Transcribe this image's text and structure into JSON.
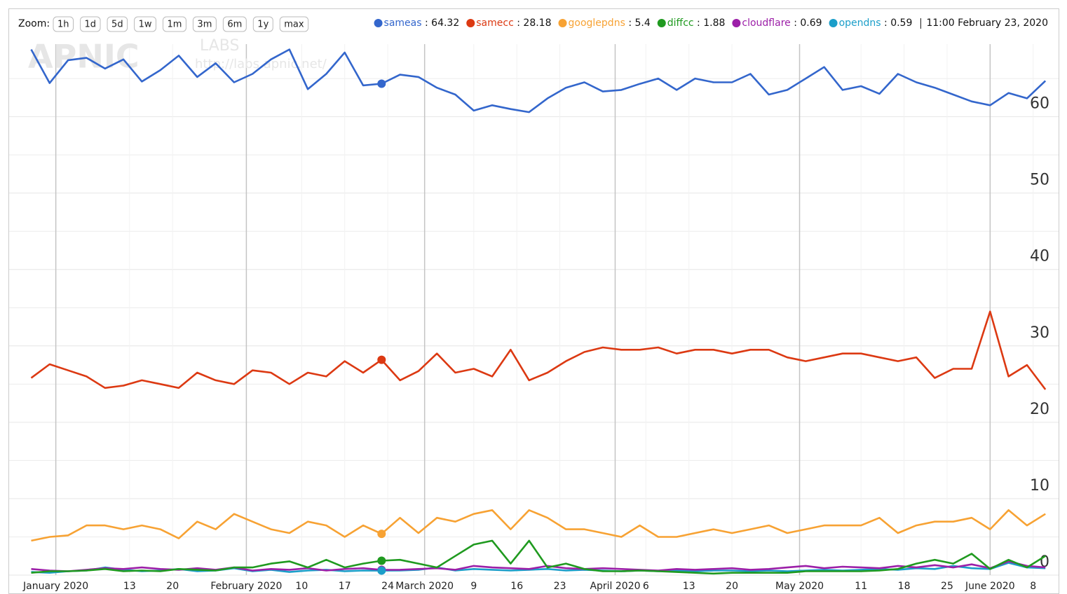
{
  "chart_data": {
    "type": "line",
    "zoom": {
      "label": "Zoom:",
      "buttons": [
        "1h",
        "1d",
        "5d",
        "1w",
        "1m",
        "3m",
        "6m",
        "1y",
        "max"
      ]
    },
    "watermark": [
      "APNIC",
      "LABS",
      "http://labs.apnic.net/"
    ],
    "legend_separator": " : ",
    "highlight": {
      "x": "2020-02-23",
      "label": "11:00 February 23, 2020"
    },
    "x": [
      "2019-12-28",
      "2019-12-31",
      "2020-01-03",
      "2020-01-06",
      "2020-01-09",
      "2020-01-12",
      "2020-01-15",
      "2020-01-18",
      "2020-01-21",
      "2020-01-24",
      "2020-01-27",
      "2020-01-30",
      "2020-02-02",
      "2020-02-05",
      "2020-02-08",
      "2020-02-11",
      "2020-02-14",
      "2020-02-17",
      "2020-02-20",
      "2020-02-23",
      "2020-02-26",
      "2020-02-29",
      "2020-03-03",
      "2020-03-06",
      "2020-03-09",
      "2020-03-12",
      "2020-03-15",
      "2020-03-18",
      "2020-03-21",
      "2020-03-24",
      "2020-03-27",
      "2020-03-30",
      "2020-04-02",
      "2020-04-05",
      "2020-04-08",
      "2020-04-11",
      "2020-04-14",
      "2020-04-17",
      "2020-04-20",
      "2020-04-23",
      "2020-04-26",
      "2020-04-29",
      "2020-05-02",
      "2020-05-05",
      "2020-05-08",
      "2020-05-11",
      "2020-05-14",
      "2020-05-17",
      "2020-05-20",
      "2020-05-23",
      "2020-05-26",
      "2020-05-29",
      "2020-06-01",
      "2020-06-04",
      "2020-06-07",
      "2020-06-10"
    ],
    "series": [
      {
        "name": "sameas",
        "color": "#3366cc",
        "values": [
          68.8,
          64.4,
          67.4,
          67.7,
          66.3,
          67.5,
          64.6,
          66.1,
          68.0,
          65.2,
          67.0,
          64.5,
          65.6,
          67.5,
          68.8,
          63.6,
          65.6,
          68.4,
          64.1,
          64.32,
          65.5,
          65.2,
          63.8,
          62.9,
          60.8,
          61.5,
          61.0,
          60.6,
          62.4,
          63.8,
          64.5,
          63.3,
          63.5,
          64.3,
          65.0,
          63.5,
          65.0,
          64.5,
          64.5,
          65.6,
          62.9,
          63.5,
          65.0,
          66.5,
          63.5,
          64.0,
          63.0,
          65.6,
          64.5,
          63.8,
          62.9,
          62.0,
          61.5,
          63.1,
          62.4,
          64.7
        ]
      },
      {
        "name": "samecc",
        "color": "#dc3912",
        "values": [
          25.8,
          27.6,
          26.8,
          26.0,
          24.5,
          24.8,
          25.5,
          25.0,
          24.5,
          26.5,
          25.5,
          25.0,
          26.8,
          26.5,
          25.0,
          26.5,
          26.0,
          28.0,
          26.5,
          28.18,
          25.5,
          26.7,
          29.0,
          26.5,
          27.0,
          26.0,
          29.5,
          25.5,
          26.5,
          28.0,
          29.2,
          29.8,
          29.5,
          29.5,
          29.8,
          29.0,
          29.5,
          29.5,
          29.0,
          29.5,
          29.5,
          28.5,
          28.0,
          28.5,
          29.0,
          29.0,
          28.5,
          28.0,
          28.5,
          25.8,
          27.0,
          27.0,
          34.5,
          26.0,
          27.5,
          24.3
        ]
      },
      {
        "name": "googlepdns",
        "color": "#f7a233",
        "values": [
          4.5,
          5.0,
          5.2,
          6.5,
          6.5,
          6.0,
          6.5,
          6.0,
          4.8,
          7.0,
          6.0,
          8.0,
          7.0,
          6.0,
          5.5,
          7.0,
          6.5,
          5.0,
          6.5,
          5.4,
          7.5,
          5.5,
          7.5,
          7.0,
          8.0,
          8.5,
          6.0,
          8.5,
          7.5,
          6.0,
          6.0,
          5.5,
          5.0,
          6.5,
          5.0,
          5.0,
          5.5,
          6.0,
          5.5,
          6.0,
          6.5,
          5.5,
          6.0,
          6.5,
          6.5,
          6.5,
          7.5,
          5.5,
          6.5,
          7.0,
          7.0,
          7.5,
          6.0,
          8.5,
          6.5,
          8.0
        ]
      },
      {
        "name": "diffcc",
        "color": "#1f9a1f",
        "values": [
          0.3,
          0.5,
          0.5,
          0.6,
          0.8,
          0.5,
          0.6,
          0.5,
          0.8,
          0.7,
          0.6,
          1.0,
          1.0,
          1.5,
          1.8,
          1.0,
          2.0,
          1.0,
          1.5,
          1.88,
          2.0,
          1.5,
          1.0,
          2.5,
          4.0,
          4.5,
          1.5,
          4.5,
          1.0,
          1.5,
          0.8,
          0.5,
          0.5,
          0.6,
          0.5,
          0.4,
          0.3,
          0.2,
          0.3,
          0.3,
          0.3,
          0.3,
          0.5,
          0.5,
          0.5,
          0.5,
          0.6,
          0.8,
          1.5,
          2.0,
          1.5,
          2.8,
          0.8,
          2.0,
          1.0,
          2.5
        ]
      },
      {
        "name": "cloudflare",
        "color": "#9c1fa8",
        "values": [
          0.8,
          0.6,
          0.5,
          0.7,
          0.9,
          0.8,
          1.0,
          0.8,
          0.7,
          0.9,
          0.7,
          1.0,
          0.6,
          0.8,
          0.7,
          0.9,
          0.6,
          0.8,
          0.9,
          0.69,
          0.7,
          0.8,
          0.9,
          0.7,
          1.2,
          1.0,
          0.9,
          0.8,
          1.2,
          0.9,
          0.8,
          0.9,
          0.8,
          0.7,
          0.6,
          0.8,
          0.7,
          0.8,
          0.9,
          0.7,
          0.8,
          1.0,
          1.2,
          0.9,
          1.1,
          1.0,
          0.9,
          1.2,
          1.0,
          1.3,
          1.0,
          1.4,
          0.9,
          1.8,
          1.2,
          1.0
        ]
      },
      {
        "name": "opendns",
        "color": "#1b9ec9",
        "values": [
          0.4,
          0.3,
          0.5,
          0.6,
          1.0,
          0.7,
          0.5,
          0.6,
          0.8,
          0.5,
          0.6,
          0.9,
          0.5,
          0.7,
          0.4,
          0.6,
          0.7,
          0.5,
          0.6,
          0.59,
          0.6,
          0.7,
          1.0,
          0.6,
          0.8,
          0.7,
          0.6,
          0.7,
          0.8,
          0.6,
          0.7,
          0.6,
          0.5,
          0.6,
          0.5,
          0.6,
          0.5,
          0.6,
          0.6,
          0.5,
          0.6,
          0.5,
          0.6,
          0.7,
          0.6,
          0.7,
          0.8,
          0.7,
          0.9,
          0.8,
          1.2,
          0.9,
          0.8,
          1.6,
          1.0,
          0.9
        ]
      }
    ],
    "xlim": [
      "2019-12-26",
      "2020-06-11"
    ],
    "xticks": [
      {
        "value": "2020-01-01",
        "label": "January 2020"
      },
      {
        "value": "2020-01-13",
        "label": "13"
      },
      {
        "value": "2020-01-20",
        "label": "20"
      },
      {
        "value": "2020-02-01",
        "label": "February 2020"
      },
      {
        "value": "2020-02-10",
        "label": "10"
      },
      {
        "value": "2020-02-17",
        "label": "17"
      },
      {
        "value": "2020-02-24",
        "label": "24"
      },
      {
        "value": "2020-03-01",
        "label": "March 2020"
      },
      {
        "value": "2020-03-09",
        "label": "9"
      },
      {
        "value": "2020-03-16",
        "label": "16"
      },
      {
        "value": "2020-03-23",
        "label": "23"
      },
      {
        "value": "2020-04-01",
        "label": "April 2020"
      },
      {
        "value": "2020-04-06",
        "label": "6"
      },
      {
        "value": "2020-04-13",
        "label": "13"
      },
      {
        "value": "2020-04-20",
        "label": "20"
      },
      {
        "value": "2020-05-01",
        "label": "May 2020"
      },
      {
        "value": "2020-05-11",
        "label": "11"
      },
      {
        "value": "2020-05-18",
        "label": "18"
      },
      {
        "value": "2020-05-25",
        "label": "25"
      },
      {
        "value": "2020-06-01",
        "label": "June 2020"
      },
      {
        "value": "2020-06-08",
        "label": "8"
      }
    ],
    "ylim": [
      0,
      69.5
    ],
    "yticks": [
      0,
      10,
      20,
      30,
      40,
      50,
      60
    ],
    "minor_yticks": [
      5,
      15,
      25,
      35,
      45,
      55,
      65
    ],
    "grid": true
  }
}
